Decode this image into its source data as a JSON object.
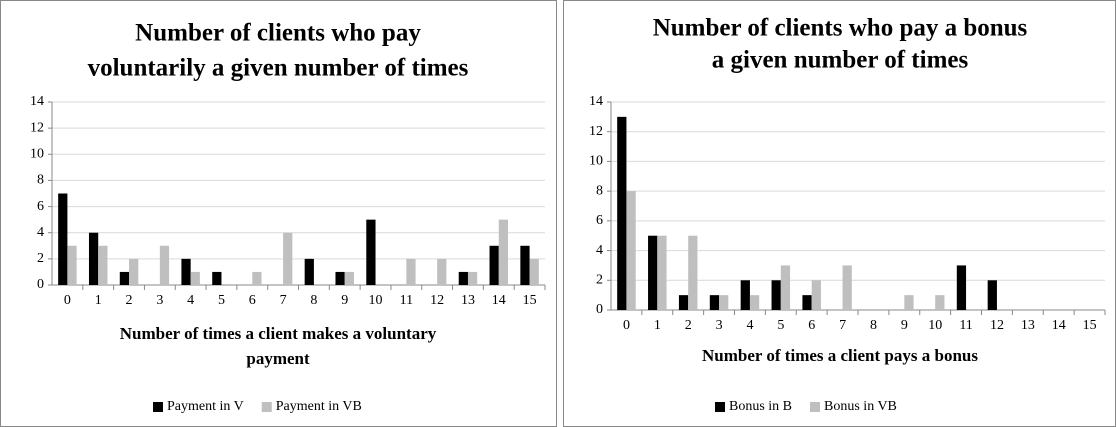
{
  "chart_data": [
    {
      "type": "bar",
      "title": [
        "Number of clients who pay",
        "voluntarily a given number of times"
      ],
      "x_label": [
        "Number of times a client makes a voluntary",
        "payment"
      ],
      "categories": [
        "0",
        "1",
        "2",
        "3",
        "4",
        "5",
        "6",
        "7",
        "8",
        "9",
        "10",
        "11",
        "12",
        "13",
        "14",
        "15"
      ],
      "series": [
        {
          "name": "Payment in V",
          "color": "#000000",
          "values": [
            7,
            4,
            1,
            0,
            2,
            1,
            0,
            0,
            2,
            1,
            5,
            0,
            0,
            1,
            3,
            3
          ]
        },
        {
          "name": "Payment in VB",
          "color": "#bfbfbf",
          "values": [
            3,
            3,
            2,
            3,
            1,
            0,
            1,
            4,
            0,
            1,
            0,
            2,
            2,
            1,
            5,
            2
          ]
        }
      ],
      "ylim": [
        0,
        14
      ],
      "yticks": [
        0,
        2,
        4,
        6,
        8,
        10,
        12,
        14
      ],
      "grid": true,
      "legend": "bottom"
    },
    {
      "type": "bar",
      "title": [
        "Number of clients who pay a bonus",
        "a given number of times"
      ],
      "x_label": [
        "Number of times a client pays a bonus"
      ],
      "categories": [
        "0",
        "1",
        "2",
        "3",
        "4",
        "5",
        "6",
        "7",
        "8",
        "9",
        "10",
        "11",
        "12",
        "13",
        "14",
        "15"
      ],
      "series": [
        {
          "name": "Bonus in B",
          "color": "#000000",
          "values": [
            13,
            5,
            1,
            1,
            2,
            2,
            1,
            0,
            0,
            0,
            0,
            3,
            2,
            0,
            0,
            0
          ]
        },
        {
          "name": "Bonus in VB",
          "color": "#bfbfbf",
          "values": [
            8,
            5,
            5,
            1,
            1,
            3,
            2,
            3,
            0,
            1,
            1,
            0,
            0,
            0,
            0,
            0
          ]
        }
      ],
      "ylim": [
        0,
        14
      ],
      "yticks": [
        0,
        2,
        4,
        6,
        8,
        10,
        12,
        14
      ],
      "grid": true,
      "legend": "bottom"
    }
  ]
}
